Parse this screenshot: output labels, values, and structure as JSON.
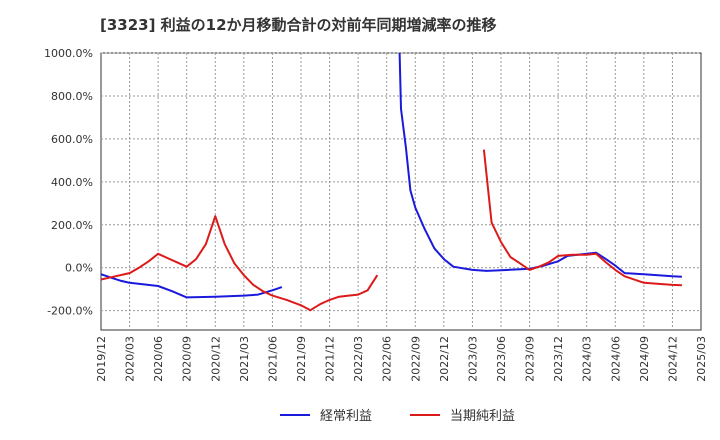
{
  "chart_data": {
    "type": "line",
    "title": "[3323]  利益の12か月移動合計の対前年同期増減率の推移",
    "xlabel": "",
    "ylabel": "",
    "ylim": [
      -290,
      1000
    ],
    "y_ticks": [
      1000,
      800,
      600,
      400,
      200,
      0,
      -200
    ],
    "y_tick_labels": [
      "1000.0%",
      "800.0%",
      "600.0%",
      "400.0%",
      "200.0%",
      "0.0%",
      "-200.0%"
    ],
    "x_ticks": [
      "2019/12",
      "2020/03",
      "2020/06",
      "2020/09",
      "2020/12",
      "2021/03",
      "2021/06",
      "2021/09",
      "2021/12",
      "2022/03",
      "2022/06",
      "2022/09",
      "2022/12",
      "2023/03",
      "2023/06",
      "2023/09",
      "2023/12",
      "2024/03",
      "2024/06",
      "2024/09",
      "2024/12",
      "2025/03"
    ],
    "grid": true,
    "legend": "bottom",
    "series": [
      {
        "name": "経常利益",
        "color": "#1a1adc",
        "points": [
          [
            0,
            -30
          ],
          [
            0.33,
            -45
          ],
          [
            0.67,
            -60
          ],
          [
            1,
            -70
          ],
          [
            2,
            -85
          ],
          [
            2.5,
            -110
          ],
          [
            3,
            -138
          ],
          [
            4,
            -135
          ],
          [
            5,
            -130
          ],
          [
            5.5,
            -125
          ],
          [
            6,
            -105
          ],
          [
            6.33,
            -90
          ],
          [
            10.45,
            1000
          ],
          [
            10.5,
            740
          ],
          [
            10.67,
            560
          ],
          [
            10.83,
            360
          ],
          [
            11,
            280
          ],
          [
            11.33,
            180
          ],
          [
            11.67,
            90
          ],
          [
            12,
            40
          ],
          [
            12.33,
            5
          ],
          [
            13,
            -10
          ],
          [
            13.5,
            -15
          ],
          [
            14,
            -12
          ],
          [
            15,
            -5
          ],
          [
            15.5,
            10
          ],
          [
            16,
            30
          ],
          [
            16.33,
            55
          ],
          [
            17,
            65
          ],
          [
            17.33,
            70
          ],
          [
            17.67,
            40
          ],
          [
            18,
            10
          ],
          [
            18.33,
            -25
          ],
          [
            19,
            -30
          ],
          [
            19.5,
            -35
          ],
          [
            20,
            -40
          ],
          [
            20.33,
            -42
          ]
        ]
      },
      {
        "name": "当期純利益",
        "color": "#dd1a1a",
        "points": [
          [
            0,
            -55
          ],
          [
            0.5,
            -40
          ],
          [
            1,
            -25
          ],
          [
            1.33,
            0
          ],
          [
            1.67,
            30
          ],
          [
            2,
            65
          ],
          [
            2.33,
            45
          ],
          [
            2.67,
            25
          ],
          [
            3,
            5
          ],
          [
            3.33,
            40
          ],
          [
            3.67,
            110
          ],
          [
            4,
            240
          ],
          [
            4.33,
            110
          ],
          [
            4.67,
            20
          ],
          [
            5,
            -35
          ],
          [
            5.33,
            -80
          ],
          [
            5.67,
            -110
          ],
          [
            6,
            -130
          ],
          [
            6.5,
            -150
          ],
          [
            7,
            -175
          ],
          [
            7.33,
            -198
          ],
          [
            7.67,
            -170
          ],
          [
            8,
            -150
          ],
          [
            8.33,
            -135
          ],
          [
            8.67,
            -130
          ],
          [
            9,
            -125
          ],
          [
            9.33,
            -105
          ],
          [
            9.67,
            -35
          ],
          [
            13.4,
            550
          ],
          [
            13.67,
            210
          ],
          [
            14,
            120
          ],
          [
            14.33,
            50
          ],
          [
            14.67,
            20
          ],
          [
            15,
            -10
          ],
          [
            15.33,
            5
          ],
          [
            15.67,
            25
          ],
          [
            16,
            55
          ],
          [
            16.5,
            60
          ],
          [
            17,
            60
          ],
          [
            17.33,
            65
          ],
          [
            17.67,
            25
          ],
          [
            18,
            -10
          ],
          [
            18.33,
            -40
          ],
          [
            19,
            -70
          ],
          [
            20,
            -80
          ],
          [
            20.33,
            -82
          ]
        ]
      }
    ]
  }
}
